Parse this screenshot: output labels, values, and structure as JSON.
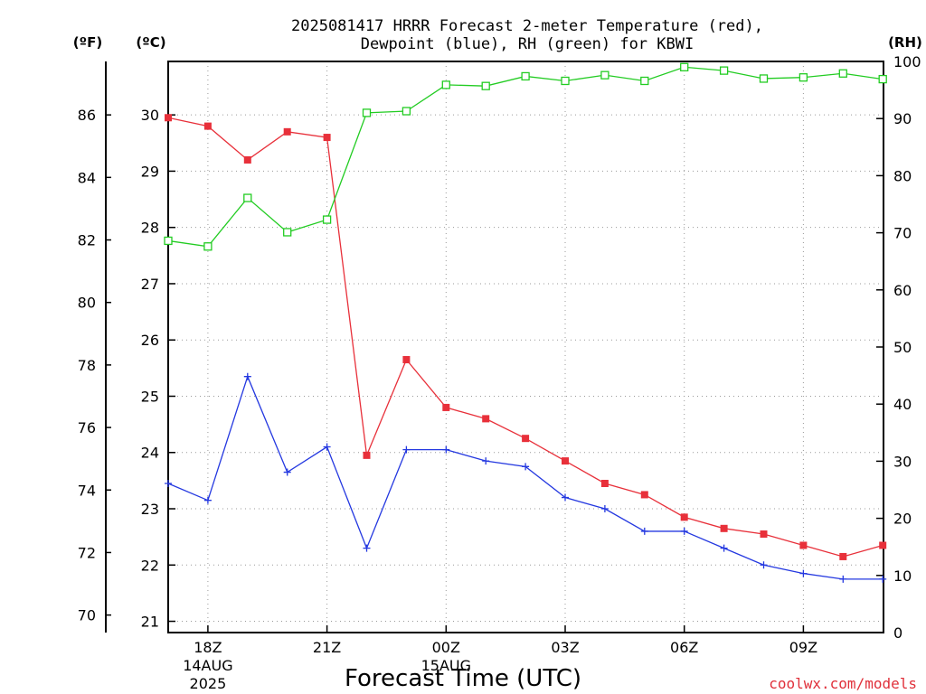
{
  "title_line1": "2025081417 HRRR Forecast 2-meter Temperature (red),",
  "title_line2": "Dewpoint (blue), RH (green) for KBWI",
  "unit_f": "(ºF)",
  "unit_c": "(ºC)",
  "unit_rh": "(RH)",
  "xlabel": "Forecast Time (UTC)",
  "credit": "coolwx.com/models",
  "colors": {
    "temperature": "#e8303a",
    "dewpoint": "#2438e0",
    "rh": "#22cc22",
    "axis": "#000000"
  },
  "chart_data": {
    "type": "line",
    "title": "2025081417 HRRR Forecast 2-meter Temperature (red), Dewpoint (blue), RH (green) for KBWI",
    "xlabel": "Forecast Time (UTC)",
    "x": [
      "17Z",
      "18Z",
      "19Z",
      "20Z",
      "21Z",
      "22Z",
      "23Z",
      "00Z",
      "01Z",
      "02Z",
      "03Z",
      "04Z",
      "05Z",
      "06Z",
      "07Z",
      "08Z",
      "09Z",
      "10Z",
      "11Z"
    ],
    "x_ticks": [
      {
        "label": "18Z",
        "sub1": "14AUG",
        "sub2": "2025",
        "index": 1
      },
      {
        "label": "21Z",
        "sub1": "",
        "sub2": "",
        "index": 4
      },
      {
        "label": "00Z",
        "sub1": "15AUG",
        "sub2": "",
        "index": 7
      },
      {
        "label": "03Z",
        "sub1": "",
        "sub2": "",
        "index": 10
      },
      {
        "label": "06Z",
        "sub1": "",
        "sub2": "",
        "index": 13
      },
      {
        "label": "09Z",
        "sub1": "",
        "sub2": "",
        "index": 16
      }
    ],
    "ylim_c": [
      20.8,
      30.95
    ],
    "yticks_c": [
      21,
      22,
      23,
      24,
      25,
      26,
      27,
      28,
      29,
      30
    ],
    "yticks_f": [
      70,
      72,
      74,
      76,
      78,
      80,
      82,
      84,
      86
    ],
    "ylim_rh": [
      0,
      100
    ],
    "yticks_rh": [
      0,
      10,
      20,
      30,
      40,
      50,
      60,
      70,
      80,
      90,
      100
    ],
    "series": [
      {
        "key": "temperature",
        "axis": "c",
        "marker": "square-filled",
        "values": [
          29.95,
          29.8,
          29.2,
          29.7,
          29.6,
          23.95,
          25.65,
          24.8,
          24.6,
          24.25,
          23.85,
          23.45,
          23.25,
          22.85,
          22.65,
          22.55,
          22.35,
          22.15,
          22.35
        ]
      },
      {
        "key": "dewpoint",
        "axis": "c",
        "marker": "plus",
        "values": [
          23.45,
          23.15,
          25.35,
          23.65,
          24.1,
          22.3,
          24.05,
          24.05,
          23.85,
          23.75,
          23.2,
          23.0,
          22.6,
          22.6,
          22.3,
          22.0,
          21.85,
          21.75,
          21.75
        ]
      },
      {
        "key": "rh",
        "axis": "rh",
        "marker": "square-open",
        "values": [
          68.6,
          67.6,
          76.1,
          70.1,
          72.3,
          91.0,
          91.3,
          95.9,
          95.7,
          97.4,
          96.6,
          97.6,
          96.6,
          99.0,
          98.4,
          97.0,
          97.2,
          97.9,
          96.9
        ]
      }
    ],
    "grid": true
  }
}
